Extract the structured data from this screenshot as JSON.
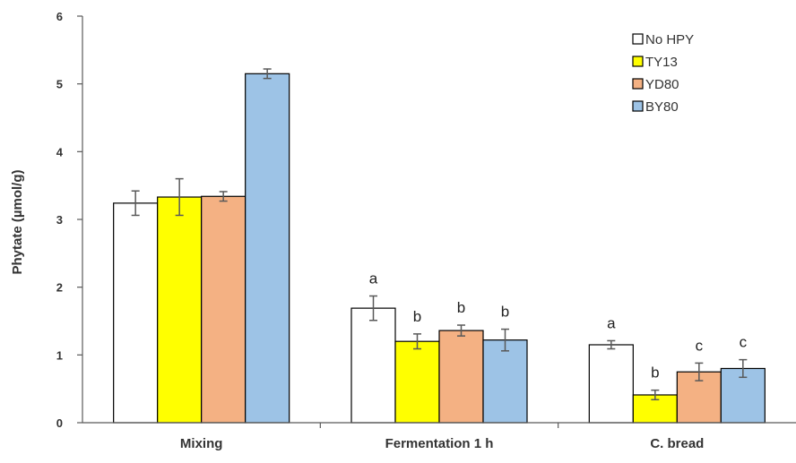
{
  "chart_data": {
    "type": "bar",
    "categories": [
      "Mixing",
      "Fermentation 1 h",
      "C. bread"
    ],
    "ylabel": "Phytate (µmol/g)",
    "xlabel": "",
    "ylim": [
      0,
      6
    ],
    "yticks": [
      "0",
      "1",
      "2",
      "3",
      "4",
      "5",
      "6"
    ],
    "grid": false,
    "legend_position": "top-right",
    "series": [
      {
        "name": "No HPY",
        "color": "#ffffff",
        "values": [
          3.24,
          1.69,
          1.15
        ],
        "errors": [
          0.18,
          0.18,
          0.06
        ],
        "labels": [
          "",
          "a",
          "a"
        ]
      },
      {
        "name": "TY13",
        "color": "#ffff00",
        "values": [
          3.33,
          1.2,
          0.41
        ],
        "errors": [
          0.27,
          0.11,
          0.07
        ],
        "labels": [
          "",
          "b",
          "b"
        ]
      },
      {
        "name": "YD80",
        "color": "#f4b183",
        "values": [
          3.34,
          1.36,
          0.75
        ],
        "errors": [
          0.07,
          0.08,
          0.13
        ],
        "labels": [
          "",
          "b",
          "c"
        ]
      },
      {
        "name": "BY80",
        "color": "#9dc3e6",
        "values": [
          5.15,
          1.22,
          0.8
        ],
        "errors": [
          0.07,
          0.16,
          0.13
        ],
        "labels": [
          "",
          "b",
          "c"
        ]
      }
    ]
  }
}
